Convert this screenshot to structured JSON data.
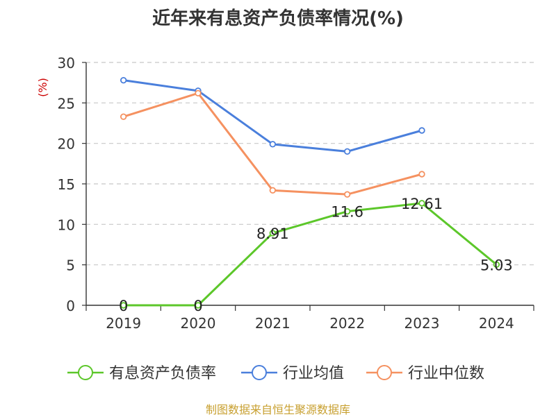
{
  "chart_data": {
    "type": "line",
    "title": "近年来有息资产负债率情况(%)",
    "ylabel": "(%)",
    "xlabel": "",
    "categories": [
      "2019",
      "2020",
      "2021",
      "2022",
      "2023",
      "2024"
    ],
    "ylim": [
      0,
      30
    ],
    "yticks": [
      0,
      5,
      10,
      15,
      20,
      25,
      30
    ],
    "grid": true,
    "legend_position": "bottom",
    "series": [
      {
        "name": "有息资产负债率",
        "color": "#5cc72a",
        "values": [
          0,
          0,
          8.91,
          11.6,
          12.61,
          5.03
        ],
        "labels": [
          "0",
          "0",
          "8.91",
          "11.6",
          "12.61",
          "5.03"
        ]
      },
      {
        "name": "行业均值",
        "color": "#4a7fdc",
        "values": [
          27.8,
          26.5,
          19.9,
          19.0,
          21.6,
          null
        ]
      },
      {
        "name": "行业中位数",
        "color": "#f59160",
        "values": [
          23.3,
          26.2,
          14.2,
          13.7,
          16.2,
          null
        ]
      }
    ]
  },
  "footer": "制图数据来自恒生聚源数据库"
}
